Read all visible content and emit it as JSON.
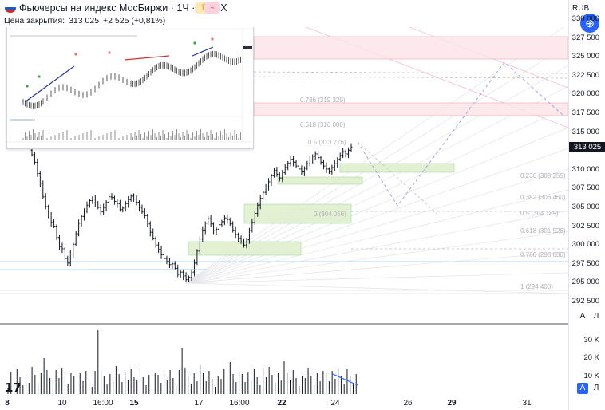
{
  "header": {
    "title": "Фьючерсы на индекс МосБиржи · 1Ч · MOEX",
    "close_label": "Цена закрытия:",
    "close_value": "313 025",
    "change": "+2 525 (+0,81%)",
    "badge1_icon": "crown-icon",
    "badge2_icon": "waves-icon"
  },
  "axis": {
    "currency": "RUB",
    "ticks": [
      "330 000",
      "327 500",
      "325 000",
      "322 500",
      "320 000",
      "317 500",
      "315 000",
      "312 500",
      "310 000",
      "307 500",
      "305 000",
      "302 500",
      "300 000",
      "297 500",
      "295 000",
      "292 500"
    ],
    "current_price": "313 025",
    "btn_a": "A",
    "btn_l": "Л",
    "vol_ticks": [
      "30 K",
      "20 K",
      "10 K"
    ],
    "btn_a2": "A",
    "btn_l2": "Л"
  },
  "xaxis": [
    {
      "t": "8",
      "bold": true
    },
    {
      "t": "10",
      "bold": false
    },
    {
      "t": "16:00",
      "bold": false
    },
    {
      "t": "15",
      "bold": true
    },
    {
      "t": "17",
      "bold": false
    },
    {
      "t": "16:00",
      "bold": false
    },
    {
      "t": "22",
      "bold": true
    },
    {
      "t": "24",
      "bold": false
    },
    {
      "t": "26",
      "bold": false
    },
    {
      "t": "29",
      "bold": true
    },
    {
      "t": "31",
      "bold": false
    }
  ],
  "fib_labels": [
    "0.786 (319 329)",
    "0.618 (316 000)",
    "0.5 (313 776)",
    "0.236 (308 255)",
    "0.382 (306 460)",
    "0 (304 056)",
    "0.5 (304 189)",
    "0.618 (301 526)",
    "0.786 (298 680)",
    "1 (294 400)"
  ],
  "logo": "17",
  "chart_data": {
    "type": "candlestick",
    "title": "Фьючерсы на индекс МосБиржи · 1Ч · MOEX",
    "price_axis": {
      "min": 292500,
      "max": 330000,
      "step": 2500
    },
    "last_close": 313025,
    "change": 2525,
    "change_pct": 0.81,
    "close_series": [
      312000,
      311000,
      309500,
      308200,
      306400,
      305100,
      304000,
      303000,
      302500,
      301000,
      299800,
      299500,
      298200,
      297600,
      298800,
      300100,
      301500,
      302900,
      303800,
      304500,
      305300,
      305900,
      306100,
      305600,
      305000,
      304400,
      305000,
      305700,
      306400,
      306300,
      305800,
      305500,
      304700,
      304900,
      305500,
      306000,
      306500,
      306100,
      305700,
      305000,
      304400,
      303900,
      302800,
      301700,
      300900,
      300000,
      299400,
      298700,
      298200,
      297800,
      297400,
      297500,
      296900,
      296100,
      296400,
      295900,
      295400,
      295700,
      296400,
      297600,
      299200,
      300800,
      302000,
      302900,
      303500,
      302800,
      301900,
      302100,
      302700,
      303100,
      303600,
      303400,
      302800,
      302000,
      301400,
      300900,
      300400,
      300000,
      300700,
      301900,
      303000,
      304200,
      305300,
      306200,
      307000,
      307700,
      308400,
      309200,
      309900,
      309400,
      308900,
      309600,
      310300,
      310900,
      311400,
      311000,
      310500,
      310100,
      309700,
      310200,
      310800,
      311300,
      311800,
      312100,
      311600,
      311000,
      310500,
      310100,
      309700,
      310300,
      310800,
      311400,
      311900,
      312400,
      312100,
      312600,
      313025
    ],
    "volume_axis": {
      "ticks": [
        "30 K",
        "20 K",
        "10 K"
      ]
    }
  }
}
